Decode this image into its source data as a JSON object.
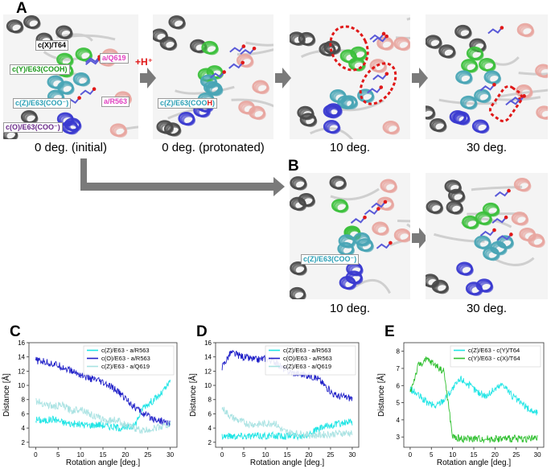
{
  "panels": {
    "A": {
      "letter": "A",
      "captions": [
        "0 deg. (initial)",
        "0 deg. (protonated)",
        "10 deg.",
        "30 deg."
      ],
      "labels": {
        "ct64": "c(X)/T64",
        "cy": "c(Y)/E63(COOH)",
        "aq619": "a/Q619",
        "hplus": "+H⁺",
        "cz": "c(Z)/E63(COO⁻)",
        "ar563": "a/R563",
        "co": "c(O)/E63(COO⁻)",
        "cz_prot_a": "c(Z)/E63(COO",
        "cz_prot_b": "H",
        "cz_prot_c": ")"
      }
    },
    "B": {
      "letter": "B",
      "captions": [
        "10 deg.",
        "30 deg."
      ],
      "labels": {
        "cz": "c(Z)/E63(COO⁻)"
      }
    }
  },
  "colors": {
    "dark_helix": "#4a4a4a",
    "green_helix": "#3cc03c",
    "teal_helix": "#49a5b5",
    "blue_helix": "#3a3ad0",
    "pink_helix": "#e8a6a0",
    "arrow_gray": "#7a7a7a",
    "red_dash": "#e01818"
  },
  "chart_data": [
    {
      "letter": "C",
      "type": "line",
      "xlabel": "Rotation angle [deg.]",
      "ylabel": "Distance [Å]",
      "xlim": [
        -1.5,
        31.5
      ],
      "ylim": [
        1.3,
        16
      ],
      "xticks": [
        0,
        5,
        10,
        15,
        20,
        25,
        30
      ],
      "yticks": [
        2,
        4,
        6,
        8,
        10,
        12,
        14,
        16
      ],
      "legend": "top-right",
      "series": [
        {
          "name": "c(Z)/E63 - a/R563",
          "color": "#20e5e5",
          "x": [
            0,
            2,
            4,
            6,
            8,
            10,
            12,
            14,
            16,
            18,
            20,
            22,
            24,
            26,
            28,
            30
          ],
          "y": [
            5.2,
            5.0,
            5.3,
            4.8,
            4.6,
            4.5,
            4.4,
            4.5,
            4.3,
            4.1,
            4.0,
            4.3,
            7.0,
            7.8,
            8.8,
            10.5
          ]
        },
        {
          "name": "c(O)/E63 - a/R563",
          "color": "#2020c8",
          "x": [
            0,
            2,
            4,
            6,
            8,
            10,
            12,
            14,
            16,
            18,
            20,
            22,
            24,
            26,
            28,
            30
          ],
          "y": [
            13.5,
            13.3,
            13.0,
            12.6,
            12.0,
            11.5,
            11.0,
            10.6,
            10.0,
            9.3,
            8.2,
            7.0,
            6.0,
            5.4,
            5.0,
            4.6
          ]
        },
        {
          "name": "c(Z)/E63 - a/Q619",
          "color": "#a8e2e2",
          "x": [
            0,
            2,
            4,
            6,
            8,
            10,
            12,
            14,
            16,
            18,
            20,
            22,
            24,
            26,
            28,
            30
          ],
          "y": [
            7.8,
            7.4,
            7.0,
            7.2,
            6.4,
            6.8,
            6.0,
            5.4,
            5.0,
            5.2,
            4.4,
            4.0,
            3.6,
            3.9,
            4.2,
            4.5
          ]
        }
      ]
    },
    {
      "letter": "D",
      "type": "line",
      "xlabel": "Rotation angle [deg.]",
      "ylabel": "Distance [Å]",
      "xlim": [
        -1.5,
        31.5
      ],
      "ylim": [
        1.3,
        16
      ],
      "xticks": [
        0,
        5,
        10,
        15,
        20,
        25,
        30
      ],
      "yticks": [
        2,
        4,
        6,
        8,
        10,
        12,
        14,
        16
      ],
      "legend": "top-right",
      "series": [
        {
          "name": "c(Z)/E63 - a/R563",
          "color": "#20e5e5",
          "x": [
            0,
            2,
            4,
            6,
            8,
            10,
            12,
            14,
            16,
            18,
            20,
            22,
            24,
            26,
            28,
            30
          ],
          "y": [
            2.9,
            2.9,
            2.9,
            2.9,
            2.9,
            2.9,
            2.9,
            2.9,
            2.9,
            2.9,
            3.2,
            3.8,
            4.2,
            4.5,
            4.7,
            4.8
          ]
        },
        {
          "name": "c(O)/E63 - a/R563",
          "color": "#2020c8",
          "x": [
            0,
            2,
            4,
            6,
            8,
            10,
            12,
            14,
            16,
            18,
            20,
            22,
            24,
            26,
            28,
            30
          ],
          "y": [
            12.6,
            14.6,
            14.2,
            13.8,
            13.6,
            13.8,
            13.4,
            12.4,
            11.8,
            11.6,
            11.4,
            11.0,
            9.8,
            8.6,
            8.4,
            8.2
          ]
        },
        {
          "name": "c(Z)/E63 - a/Q619",
          "color": "#a8e2e2",
          "x": [
            0,
            2,
            4,
            6,
            8,
            10,
            12,
            14,
            16,
            18,
            20,
            22,
            24,
            26,
            28,
            30
          ],
          "y": [
            6.8,
            5.6,
            5.0,
            4.6,
            4.5,
            4.6,
            4.8,
            3.6,
            3.3,
            3.2,
            3.0,
            3.0,
            3.1,
            3.2,
            3.3,
            3.3
          ]
        }
      ]
    },
    {
      "letter": "E",
      "type": "line",
      "xlabel": "Rotation angle [deg.]",
      "ylabel": "Distance [Å]",
      "xlim": [
        -1.5,
        31.5
      ],
      "ylim": [
        2.4,
        8.5
      ],
      "xticks": [
        0,
        5,
        10,
        15,
        20,
        25,
        30
      ],
      "yticks": [
        3,
        4,
        5,
        6,
        7,
        8
      ],
      "legend": "top-right",
      "series": [
        {
          "name": "c(Z)/E63 - c(Y)/T64",
          "color": "#20e5e5",
          "x": [
            0,
            2,
            4,
            6,
            8,
            10,
            12,
            14,
            16,
            18,
            20,
            22,
            24,
            26,
            28,
            30
          ],
          "y": [
            5.8,
            5.4,
            5.0,
            4.8,
            5.2,
            5.8,
            6.4,
            6.0,
            5.6,
            5.4,
            5.8,
            6.1,
            5.4,
            5.0,
            4.6,
            4.4
          ]
        },
        {
          "name": "c(Y)/E63 - c(X)/T64",
          "color": "#30c030",
          "x": [
            0,
            2,
            4,
            6,
            8,
            10,
            12,
            14,
            16,
            18,
            20,
            22,
            24,
            26,
            28,
            30
          ],
          "y": [
            5.6,
            7.2,
            7.5,
            7.2,
            6.8,
            3.0,
            2.9,
            2.9,
            2.9,
            2.9,
            2.9,
            2.9,
            2.9,
            2.9,
            2.9,
            2.9
          ]
        }
      ]
    }
  ]
}
